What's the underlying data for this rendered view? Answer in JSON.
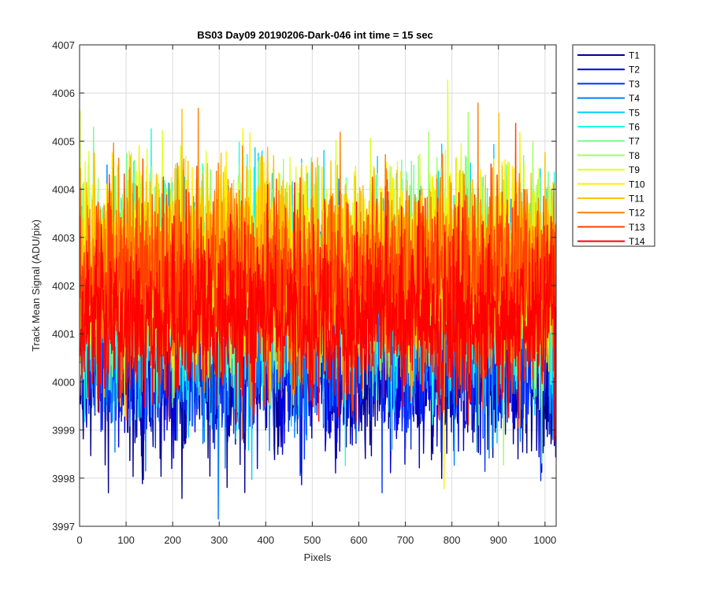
{
  "chart_data": {
    "type": "line",
    "title": "BS03 Day09 20190206-Dark-046 int time = 15 sec",
    "xlabel": "Pixels",
    "ylabel": "Track Mean Signal (ADU/pix)",
    "xlim": [
      0,
      1024
    ],
    "ylim": [
      3997,
      4007
    ],
    "x_ticks": [
      "0",
      "100",
      "200",
      "300",
      "400",
      "500",
      "600",
      "700",
      "800",
      "900",
      "1000"
    ],
    "y_ticks": [
      "3997",
      "3998",
      "3999",
      "4000",
      "4001",
      "4002",
      "4003",
      "4004",
      "4005",
      "4006",
      "4007"
    ],
    "grid": true,
    "legend_position": "outside-right",
    "x_start": 1,
    "points_per_series": 1024,
    "series": [
      {
        "name": "T1",
        "color": "#00008f",
        "mean": 4000.2,
        "spread": 0.85
      },
      {
        "name": "T2",
        "color": "#0000df",
        "mean": 4000.4,
        "spread": 0.85
      },
      {
        "name": "T3",
        "color": "#0030ff",
        "mean": 4000.6,
        "spread": 0.9
      },
      {
        "name": "T4",
        "color": "#0080ff",
        "mean": 4001.3,
        "spread": 1.0
      },
      {
        "name": "T5",
        "color": "#00cfff",
        "mean": 4001.8,
        "spread": 1.05
      },
      {
        "name": "T6",
        "color": "#20ffdf",
        "mean": 4002.0,
        "spread": 1.05
      },
      {
        "name": "T7",
        "color": "#70ff8f",
        "mean": 4002.1,
        "spread": 1.0
      },
      {
        "name": "T8",
        "color": "#9fff60",
        "mean": 4002.3,
        "spread": 1.0
      },
      {
        "name": "T9",
        "color": "#dfff20",
        "mean": 4002.4,
        "spread": 1.0
      },
      {
        "name": "T10",
        "color": "#ffef00",
        "mean": 4002.5,
        "spread": 1.0
      },
      {
        "name": "T11",
        "color": "#ffbf00",
        "mean": 4002.4,
        "spread": 1.0
      },
      {
        "name": "T12",
        "color": "#ff7f00",
        "mean": 4002.2,
        "spread": 1.0
      },
      {
        "name": "T13",
        "color": "#ff3f00",
        "mean": 4002.0,
        "spread": 1.0
      },
      {
        "name": "T14",
        "color": "#ff0000",
        "mean": 4001.3,
        "spread": 0.9
      }
    ]
  }
}
